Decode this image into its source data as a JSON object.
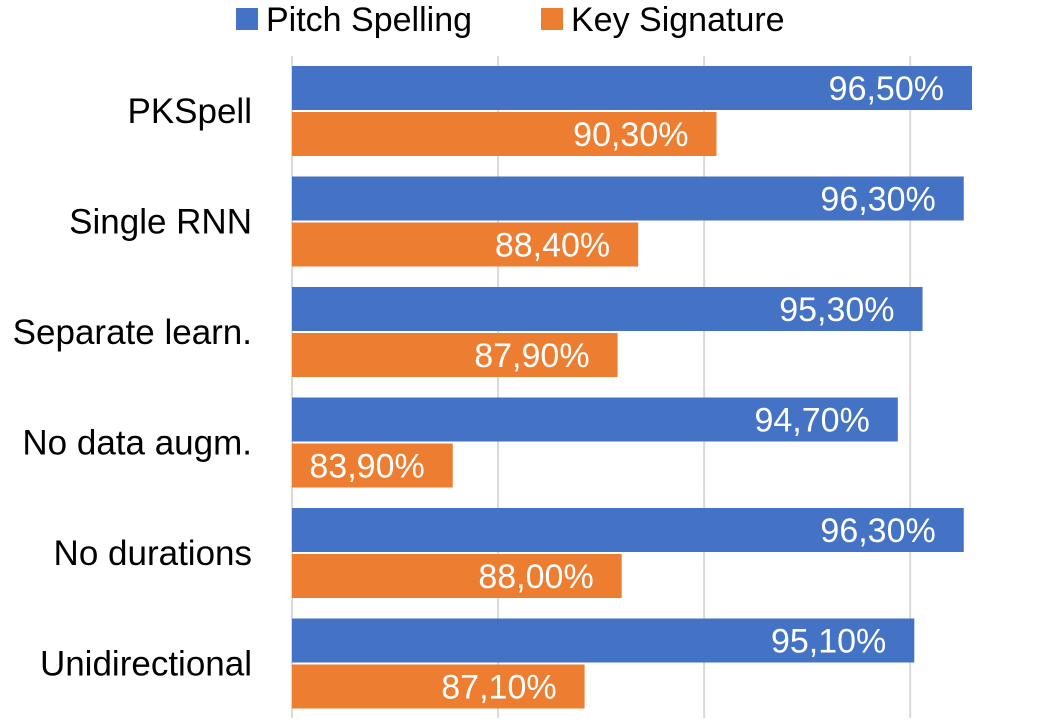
{
  "chart_data": {
    "type": "bar",
    "orientation": "horizontal",
    "categories": [
      "PKSpell",
      "Single RNN",
      "Separate learn.",
      "No data augm.",
      "No durations",
      "Unidirectional"
    ],
    "series": [
      {
        "name": "Pitch Spelling",
        "color": "#4472c4",
        "values": [
          96.5,
          96.3,
          95.3,
          94.7,
          96.3,
          95.1
        ],
        "labels": [
          "96,50%",
          "96,30%",
          "95,30%",
          "94,70%",
          "96,30%",
          "95,10%"
        ]
      },
      {
        "name": "Key Signature",
        "color": "#ed7d31",
        "values": [
          90.3,
          88.4,
          87.9,
          83.9,
          88.0,
          87.1
        ],
        "labels": [
          "90,30%",
          "88,40%",
          "87,90%",
          "83,90%",
          "88,00%",
          "87,10%"
        ]
      }
    ],
    "xlim": [
      80,
      96.5
    ],
    "grid": true,
    "legend_position": "top",
    "title": "",
    "xlabel": "",
    "ylabel": ""
  }
}
